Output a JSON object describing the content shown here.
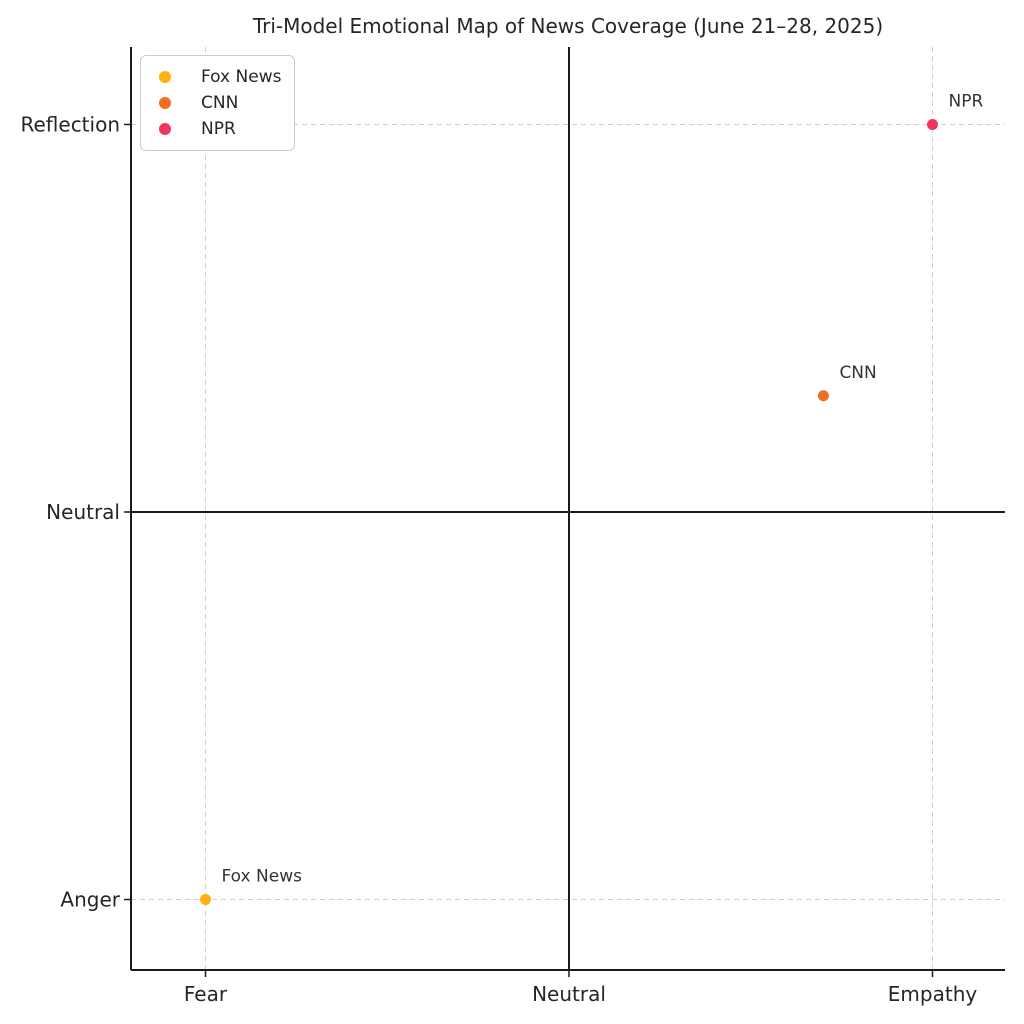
{
  "chart_data": {
    "type": "scatter",
    "title": "Tri-Model Emotional Map of News Coverage (June 21–28, 2025)",
    "xlabel": "",
    "ylabel": "",
    "xlim": [
      -1.2,
      1.2
    ],
    "ylim": [
      -1.2,
      1.2
    ],
    "grid": true,
    "grid_style": "dashed",
    "x_ticks": [
      {
        "value": -1,
        "label": "Fear"
      },
      {
        "value": 0,
        "label": "Neutral"
      },
      {
        "value": 1,
        "label": "Empathy"
      }
    ],
    "y_ticks": [
      {
        "value": -1,
        "label": "Anger"
      },
      {
        "value": 0,
        "label": "Neutral"
      },
      {
        "value": 1,
        "label": "Reflection"
      }
    ],
    "reference_lines": {
      "x": 0,
      "y": 0
    },
    "series": [
      {
        "name": "Fox News",
        "color": "#feb110",
        "x": -1.0,
        "y": -1.0
      },
      {
        "name": "CNN",
        "color": "#f26e21",
        "x": 0.7,
        "y": 0.3
      },
      {
        "name": "NPR",
        "color": "#f0355e",
        "x": 1.0,
        "y": 1.0
      }
    ],
    "legend": {
      "position": "upper-left",
      "entries": [
        "Fox News",
        "CNN",
        "NPR"
      ]
    }
  }
}
